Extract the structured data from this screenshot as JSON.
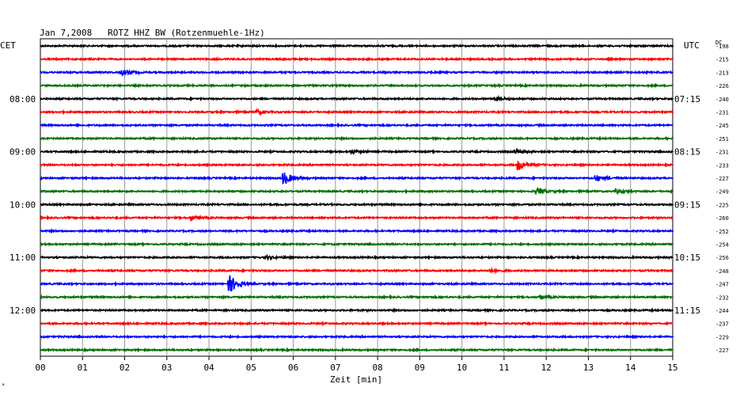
{
  "header": {
    "title": "Jan 7,2008   ROTZ HHZ BW (Rotzenmuehle-1Hz)",
    "left_timezone": "CET",
    "right_timezone": "UTC",
    "dc_label": "DC",
    "corner_mark": "*"
  },
  "chart_data": {
    "type": "line",
    "title": "Jan 7,2008   ROTZ HHZ BW (Rotzenmuehle-1Hz)",
    "xlabel": "Zeit [min]",
    "xlim": [
      0,
      15
    ],
    "x_ticks": [
      "00",
      "01",
      "02",
      "03",
      "04",
      "05",
      "06",
      "07",
      "08",
      "09",
      "10",
      "11",
      "12",
      "13",
      "14",
      "15"
    ],
    "grid": true,
    "trace_colors": [
      "#000000",
      "#ff0000",
      "#0000ff",
      "#007000"
    ],
    "left_time_labels": [
      {
        "trace": 4,
        "label": "08:00"
      },
      {
        "trace": 8,
        "label": "09:00"
      },
      {
        "trace": 12,
        "label": "10:00"
      },
      {
        "trace": 16,
        "label": "11:00"
      },
      {
        "trace": 20,
        "label": "12:00"
      }
    ],
    "right_time_labels": [
      {
        "trace": 4,
        "label": "07:15"
      },
      {
        "trace": 8,
        "label": "08:15"
      },
      {
        "trace": 12,
        "label": "09:15"
      },
      {
        "trace": 16,
        "label": "10:15"
      },
      {
        "trace": 20,
        "label": "11:15"
      }
    ],
    "dc_offsets": [
      "-198",
      "-215",
      "-213",
      "-226",
      "-240",
      "-231",
      "-245",
      "-251",
      "-231",
      "-233",
      "-227",
      "-249",
      "-225",
      "-260",
      "-252",
      "-254",
      "-256",
      "-248",
      "-247",
      "-232",
      "-244",
      "-237",
      "-229",
      "-227"
    ],
    "events": [
      {
        "trace": 2,
        "minute": 1.95,
        "amplitude": 3
      },
      {
        "trace": 4,
        "minute": 10.8,
        "amplitude": 2
      },
      {
        "trace": 5,
        "minute": 5.15,
        "amplitude": 2
      },
      {
        "trace": 8,
        "minute": 7.4,
        "amplitude": 2
      },
      {
        "trace": 8,
        "minute": 11.3,
        "amplitude": 2
      },
      {
        "trace": 9,
        "minute": 11.35,
        "amplitude": 6
      },
      {
        "trace": 10,
        "minute": 5.8,
        "amplitude": 7
      },
      {
        "trace": 10,
        "minute": 13.2,
        "amplitude": 3
      },
      {
        "trace": 11,
        "minute": 11.8,
        "amplitude": 3
      },
      {
        "trace": 11,
        "minute": 13.7,
        "amplitude": 2
      },
      {
        "trace": 13,
        "minute": 3.6,
        "amplitude": 2
      },
      {
        "trace": 16,
        "minute": 5.4,
        "amplitude": 1.5
      },
      {
        "trace": 17,
        "minute": 10.7,
        "amplitude": 1.5
      },
      {
        "trace": 18,
        "minute": 4.5,
        "amplitude": 10
      },
      {
        "trace": 19,
        "minute": 11.9,
        "amplitude": 1.5
      }
    ]
  }
}
